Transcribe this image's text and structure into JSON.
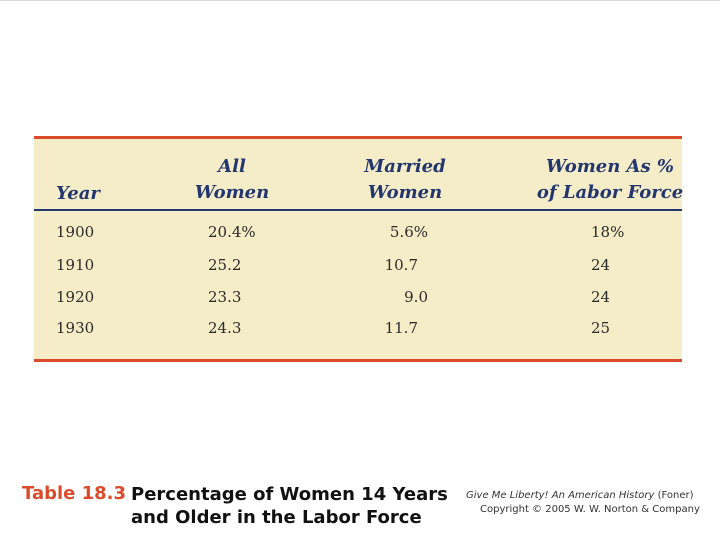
{
  "table": {
    "headers": {
      "year": "Year",
      "all_women": [
        "All",
        "Women"
      ],
      "married_women": [
        "Married",
        "Women"
      ],
      "women_pct": [
        "Women As %",
        "of Labor Force"
      ]
    },
    "rows": [
      {
        "year": "1900",
        "all": "20.4%",
        "married": "5.6%",
        "pct": "18%"
      },
      {
        "year": "1910",
        "all": "25.2",
        "married": "10.7",
        "pct": "24"
      },
      {
        "year": "1920",
        "all": "23.3",
        "married": "9.0",
        "pct": "24"
      },
      {
        "year": "1930",
        "all": "24.3",
        "married": "11.7",
        "pct": "25"
      }
    ]
  },
  "caption": {
    "number": "Table 18.3",
    "title_line1": "Percentage of Women 14 Years",
    "title_line2": "and Older in the Labor Force"
  },
  "credit": {
    "book": "Give Me Liberty! An American History",
    "author": "(Foner)",
    "copyright": "Copyright © 2005 W. W. Norton & Company"
  },
  "colors": {
    "panel": "#f4edc8",
    "accent_red": "#d94b2b",
    "navy": "#24366f"
  }
}
